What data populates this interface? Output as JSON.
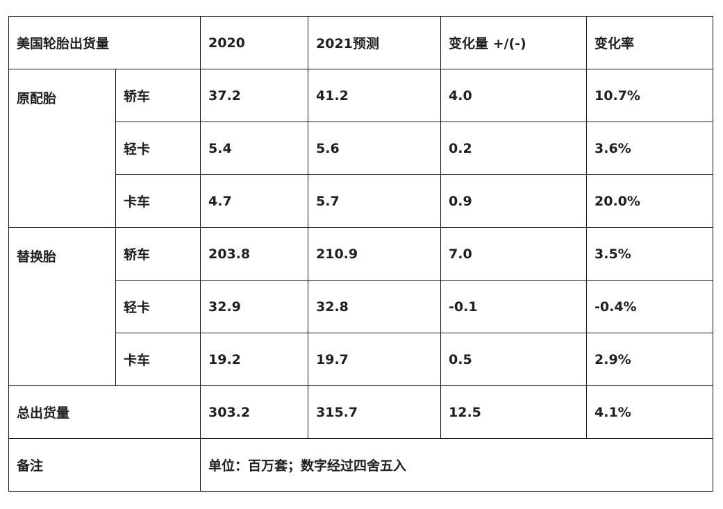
{
  "table": {
    "header": {
      "title": "美国轮胎出货量",
      "col_2020": "2020",
      "col_2021": "2021预测",
      "col_change": "变化量 +/(-)",
      "col_rate": "变化率"
    },
    "groups": [
      {
        "name": "原配胎",
        "rows": [
          {
            "type": "轿车",
            "v2020": "37.2",
            "v2021": "41.2",
            "change": "4.0",
            "rate": "10.7%"
          },
          {
            "type": "轻卡",
            "v2020": "5.4",
            "v2021": "5.6",
            "change": "0.2",
            "rate": "3.6%"
          },
          {
            "type": "卡车",
            "v2020": "4.7",
            "v2021": "5.7",
            "change": "0.9",
            "rate": "20.0%"
          }
        ]
      },
      {
        "name": "替换胎",
        "rows": [
          {
            "type": "轿车",
            "v2020": "203.8",
            "v2021": "210.9",
            "change": "7.0",
            "rate": "3.5%"
          },
          {
            "type": "轻卡",
            "v2020": "32.9",
            "v2021": "32.8",
            "change": "-0.1",
            "rate": "-0.4%"
          },
          {
            "type": "卡车",
            "v2020": "19.2",
            "v2021": "19.7",
            "change": "0.5",
            "rate": "2.9%"
          }
        ]
      }
    ],
    "total": {
      "label": "总出货量",
      "v2020": "303.2",
      "v2021": "315.7",
      "change": "12.5",
      "rate": "4.1%"
    },
    "note": {
      "label": "备注",
      "text": "单位：百万套；数字经过四舍五入"
    }
  }
}
